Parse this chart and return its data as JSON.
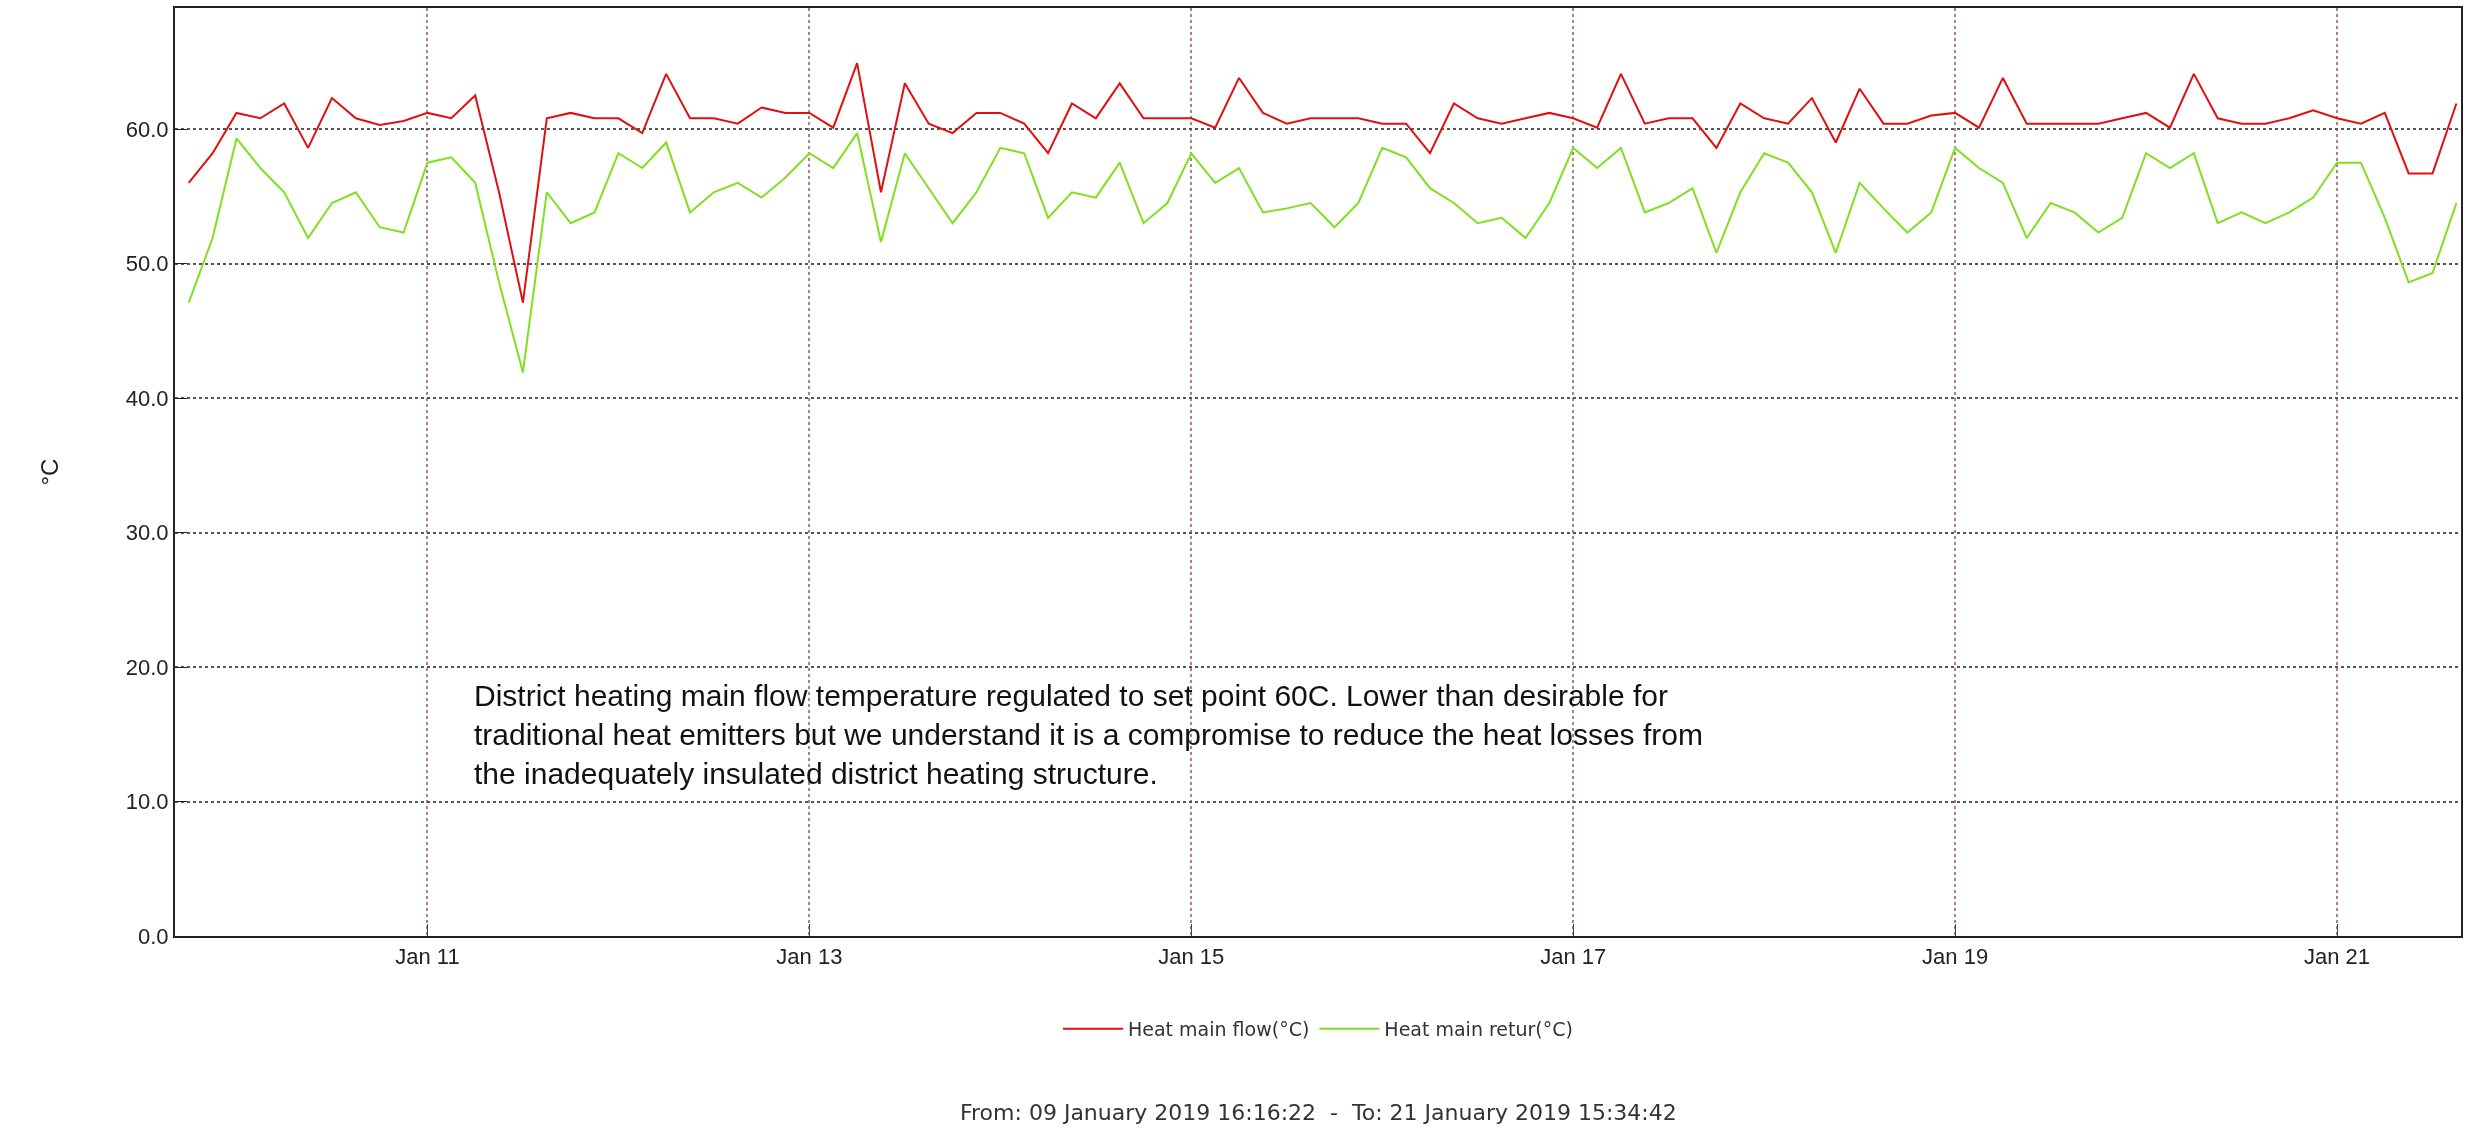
{
  "chart_data": {
    "type": "line",
    "ylabel": "°C",
    "x": [
      "2019-01-09T18:00",
      "2019-01-09T21:00",
      "2019-01-10T00:00",
      "2019-01-10T03:00",
      "2019-01-10T06:00",
      "2019-01-10T09:00",
      "2019-01-10T12:00",
      "2019-01-10T15:00",
      "2019-01-10T18:00",
      "2019-01-10T21:00",
      "2019-01-11T00:00",
      "2019-01-11T03:00",
      "2019-01-11T06:00",
      "2019-01-11T09:00",
      "2019-01-11T12:00",
      "2019-01-11T15:00",
      "2019-01-11T18:00",
      "2019-01-11T21:00",
      "2019-01-12T00:00",
      "2019-01-12T03:00",
      "2019-01-12T06:00",
      "2019-01-12T09:00",
      "2019-01-12T12:00",
      "2019-01-12T15:00",
      "2019-01-12T18:00",
      "2019-01-12T21:00",
      "2019-01-13T00:00",
      "2019-01-13T03:00",
      "2019-01-13T06:00",
      "2019-01-13T09:00",
      "2019-01-13T12:00",
      "2019-01-13T15:00",
      "2019-01-13T18:00",
      "2019-01-13T21:00",
      "2019-01-14T00:00",
      "2019-01-14T03:00",
      "2019-01-14T06:00",
      "2019-01-14T09:00",
      "2019-01-14T12:00",
      "2019-01-14T15:00",
      "2019-01-14T18:00",
      "2019-01-14T21:00",
      "2019-01-15T00:00",
      "2019-01-15T03:00",
      "2019-01-15T06:00",
      "2019-01-15T09:00",
      "2019-01-15T12:00",
      "2019-01-15T15:00",
      "2019-01-15T18:00",
      "2019-01-15T21:00",
      "2019-01-16T00:00",
      "2019-01-16T03:00",
      "2019-01-16T06:00",
      "2019-01-16T09:00",
      "2019-01-16T12:00",
      "2019-01-16T15:00",
      "2019-01-16T18:00",
      "2019-01-16T21:00",
      "2019-01-17T00:00",
      "2019-01-17T03:00",
      "2019-01-17T06:00",
      "2019-01-17T09:00",
      "2019-01-17T12:00",
      "2019-01-17T15:00",
      "2019-01-17T18:00",
      "2019-01-17T21:00",
      "2019-01-18T00:00",
      "2019-01-18T03:00",
      "2019-01-18T06:00",
      "2019-01-18T09:00",
      "2019-01-18T12:00",
      "2019-01-18T15:00",
      "2019-01-18T18:00",
      "2019-01-18T21:00",
      "2019-01-19T00:00",
      "2019-01-19T03:00",
      "2019-01-19T06:00",
      "2019-01-19T09:00",
      "2019-01-19T12:00",
      "2019-01-19T15:00",
      "2019-01-19T18:00",
      "2019-01-19T21:00",
      "2019-01-20T00:00",
      "2019-01-20T03:00",
      "2019-01-20T06:00",
      "2019-01-20T09:00",
      "2019-01-20T12:00",
      "2019-01-20T15:00",
      "2019-01-20T18:00",
      "2019-01-20T21:00",
      "2019-01-21T00:00",
      "2019-01-21T03:00",
      "2019-01-21T06:00",
      "2019-01-21T09:00",
      "2019-01-21T12:00",
      "2019-01-21T15:00"
    ],
    "series": [
      {
        "name": "Heat main flow(°C)",
        "color": "#e01010",
        "values": [
          56,
          58.2,
          61.2,
          60.8,
          61.9,
          58.6,
          62.3,
          60.8,
          60.3,
          60.6,
          61.2,
          60.8,
          62.5,
          55.3,
          47.1,
          60.8,
          61.2,
          60.8,
          60.8,
          59.7,
          64.1,
          60.8,
          60.8,
          60.4,
          61.6,
          61.2,
          61.2,
          60.1,
          64.9,
          55.3,
          63.4,
          60.4,
          59.7,
          61.2,
          61.2,
          60.4,
          58.2,
          61.9,
          60.8,
          63.4,
          60.8,
          60.8,
          60.8,
          60.1,
          63.8,
          61.2,
          60.4,
          60.8,
          60.8,
          60.8,
          60.4,
          60.4,
          58.2,
          61.9,
          60.8,
          60.4,
          60.8,
          61.2,
          60.8,
          60.1,
          64.1,
          60.4,
          60.8,
          60.8,
          58.6,
          61.9,
          60.8,
          60.4,
          62.3,
          59,
          63,
          60.4,
          60.4,
          61,
          61.2,
          60.1,
          63.8,
          60.4,
          60.4,
          60.4,
          60.4,
          60.8,
          61.2,
          60.1,
          64.1,
          60.8,
          60.4,
          60.4,
          60.8,
          61.4,
          60.8,
          60.4,
          61.2,
          56.7,
          56.7,
          61.9
        ]
      },
      {
        "name": "Heat main retur(°C)",
        "color": "#80e020",
        "values": [
          47.1,
          51.9,
          59.3,
          57.1,
          55.3,
          51.9,
          54.5,
          55.3,
          52.7,
          52.3,
          57.5,
          57.9,
          56,
          48.6,
          41.9,
          55.3,
          53,
          53.8,
          58.2,
          57.1,
          59,
          53.8,
          55.3,
          56,
          54.9,
          56.4,
          58.2,
          57.1,
          59.7,
          51.6,
          58.2,
          55.6,
          53,
          55.3,
          58.6,
          58.2,
          53.4,
          55.3,
          54.9,
          57.5,
          53,
          54.5,
          58.2,
          56,
          57.1,
          53.8,
          54.1,
          54.5,
          52.7,
          54.5,
          58.6,
          57.9,
          55.6,
          54.5,
          53,
          53.4,
          51.9,
          54.5,
          58.6,
          57.1,
          58.6,
          53.8,
          54.5,
          55.6,
          50.8,
          55.3,
          58.2,
          57.5,
          55.3,
          50.8,
          56,
          54.1,
          52.3,
          53.8,
          58.6,
          57.1,
          56,
          51.9,
          54.5,
          53.8,
          52.3,
          53.4,
          58.2,
          57.1,
          58.2,
          53,
          53.8,
          53,
          53.8,
          54.9,
          57.5,
          57.5,
          53.4,
          48.6,
          49.3,
          54.5
        ]
      }
    ],
    "xlim": [
      "2019-01-09T16:16:22",
      "2019-01-21T15:34:42"
    ],
    "xticks": [
      {
        "value": "2019-01-11",
        "label": "Jan 11"
      },
      {
        "value": "2019-01-13",
        "label": "Jan 13"
      },
      {
        "value": "2019-01-15",
        "label": "Jan 15"
      },
      {
        "value": "2019-01-17",
        "label": "Jan 17"
      },
      {
        "value": "2019-01-19",
        "label": "Jan 19"
      },
      {
        "value": "2019-01-21",
        "label": "Jan 21"
      }
    ],
    "ylim": [
      0,
      69
    ],
    "yticks": [
      {
        "value": 0,
        "label": "0.0"
      },
      {
        "value": 10,
        "label": "10.0"
      },
      {
        "value": 20,
        "label": "20.0"
      },
      {
        "value": 30,
        "label": "30.0"
      },
      {
        "value": 40,
        "label": "40.0"
      },
      {
        "value": 50,
        "label": "50.0"
      },
      {
        "value": 60,
        "label": "60.0"
      }
    ],
    "grid": true,
    "legend": "bottom",
    "annotations": [
      "District heating main flow temperature regulated to set point 60C. Lower than desirable for\ntraditional heat emitters but we understand it is a compromise to reduce the heat losses from\nthe inadequately insulated district heating structure.",
      "From: 09 January 2019 16:16:22  -  To: 21 January 2019 15:34:42"
    ]
  }
}
